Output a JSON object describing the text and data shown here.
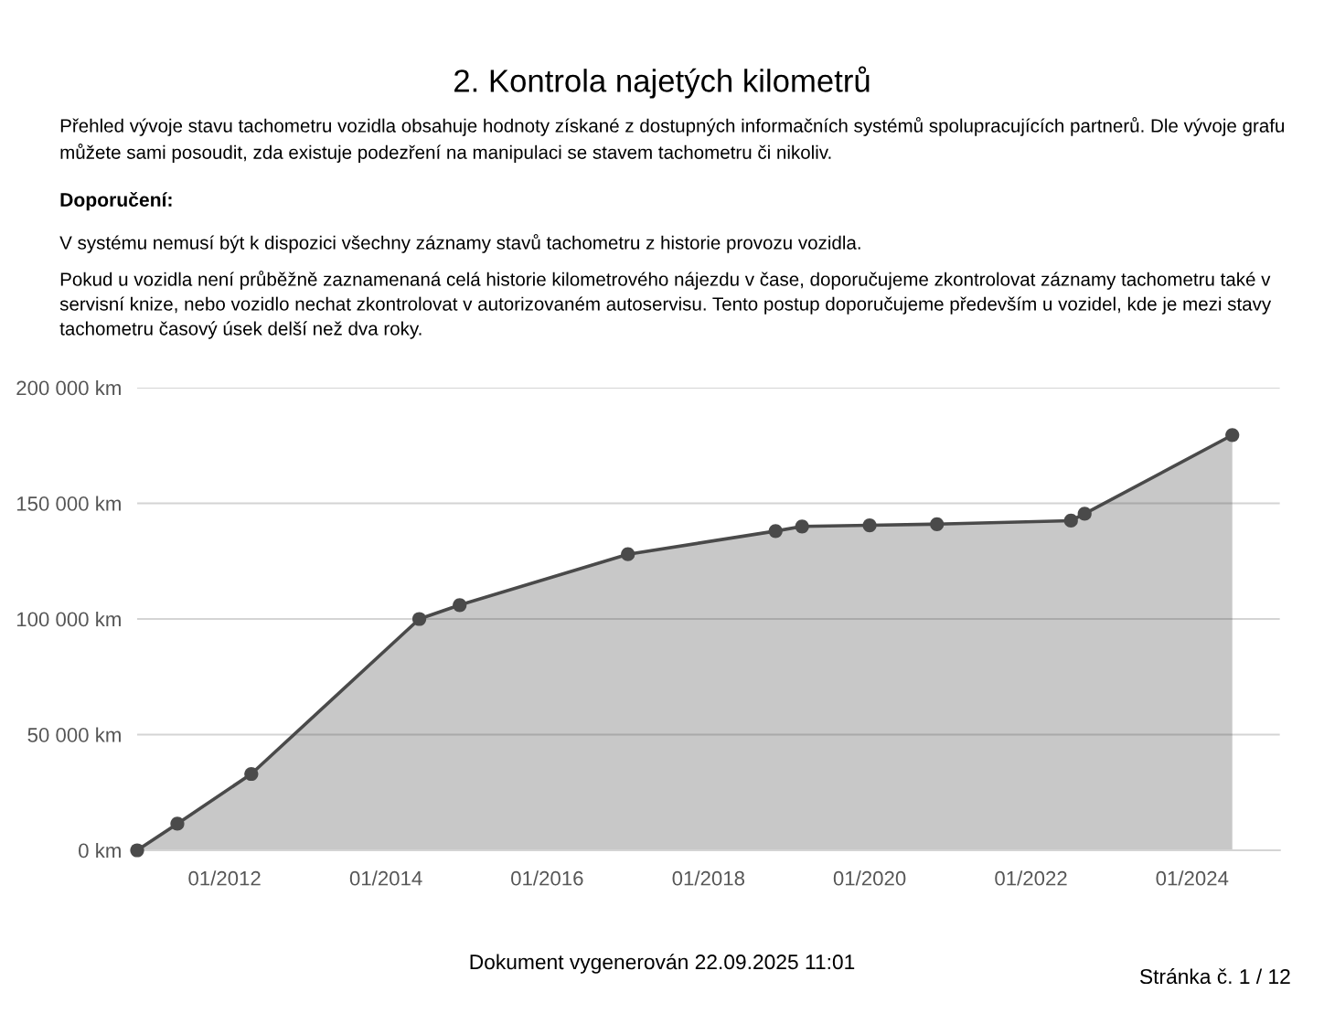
{
  "chart_data": {
    "type": "area",
    "title": "2. Kontrola najetých kilometrů",
    "subtitle": "Přehled vývoje stavu tachometru vozidla obsahuje hodnoty získané z dostupných informačních systémů spolupracujících partnerů. Dle vývoje grafu můžete sami posoudit, zda existuje podezření na manipulaci se stavem tachometru či nikoliv.",
    "annotations": [
      "Doporučení:",
      "V systému nemusí být k dispozici všechny záznamy stavů tachometru z historie provozu vozidla.",
      "Pokud u vozidla není průběžně zaznamenaná celá historie kilometrového nájezdu v čase, doporučujeme zkontrolovat záznamy tachometru také v servisní knize, nebo vozidlo nechat zkontrolovat v autorizovaném autoservisu. Tento postup doporučujeme především u vozidel, kde je mezi stavy tachometru časový úsek delší než dva roky.",
      "Dokument vygenerován 22.09.2025 11:01",
      "Stránka č. 1 / 12"
    ],
    "x": [
      "2010-12",
      "2011-06",
      "2012-05",
      "2014-06",
      "2014-12",
      "2017-01",
      "2018-11",
      "2019-03",
      "2020-01",
      "2020-11",
      "2022-07",
      "2022-09",
      "2024-07"
    ],
    "series": [
      {
        "color": "#4a4a4a",
        "values": [
          0,
          11500,
          33000,
          100000,
          106000,
          128000,
          138000,
          140000,
          140500,
          141000,
          142500,
          145500,
          179500
        ]
      }
    ],
    "xlim": [
      "2010-12",
      "2025-02"
    ],
    "xticks": [
      {
        "value": "2012-01",
        "label": "01/2012"
      },
      {
        "value": "2014-01",
        "label": "01/2014"
      },
      {
        "value": "2016-01",
        "label": "01/2016"
      },
      {
        "value": "2018-01",
        "label": "01/2018"
      },
      {
        "value": "2020-01",
        "label": "01/2020"
      },
      {
        "value": "2022-01",
        "label": "01/2022"
      },
      {
        "value": "2024-01",
        "label": "01/2024"
      }
    ],
    "ylim": [
      0,
      200000
    ],
    "yticks": [
      {
        "value": 0,
        "label": "0 km"
      },
      {
        "value": 50000,
        "label": "50 000 km"
      },
      {
        "value": 100000,
        "label": "100 000 km"
      },
      {
        "value": 150000,
        "label": "150 000 km"
      },
      {
        "value": 200000,
        "label": "200 000 km"
      }
    ],
    "grid": "y",
    "marker": "circle",
    "line_style": "solid"
  }
}
